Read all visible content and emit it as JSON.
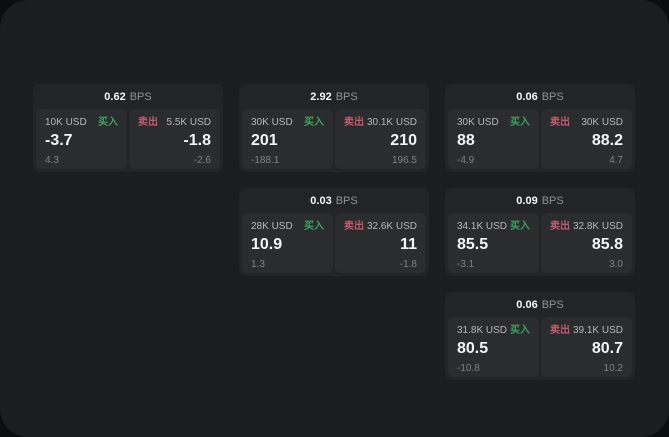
{
  "labels": {
    "bps_unit": "BPS",
    "buy": "买入",
    "sell": "卖出"
  },
  "colors": {
    "page_background": "#0c0d0e",
    "window_background": "#1c1d1e",
    "card_background": "#232426",
    "panel_background": "#2b2c2e",
    "buy_green": "#3ba55d",
    "sell_red": "#c25a6e",
    "primary_text": "#f3f4f5",
    "muted_text": "#8d9194"
  },
  "cards": [
    {
      "spread": "0.62",
      "buy": {
        "notional": "10K USD",
        "price": "-3.7",
        "delta": "4.3"
      },
      "sell": {
        "notional": "5.5K USD",
        "price": "-1.8",
        "delta": "-2.6"
      }
    },
    {
      "spread": "2.92",
      "buy": {
        "notional": "30K USD",
        "price": "201",
        "delta": "-188.1"
      },
      "sell": {
        "notional": "30.1K USD",
        "price": "210",
        "delta": "196.5"
      }
    },
    {
      "spread": "0.06",
      "buy": {
        "notional": "30K USD",
        "price": "88",
        "delta": "-4.9"
      },
      "sell": {
        "notional": "30K USD",
        "price": "88.2",
        "delta": "4.7"
      }
    },
    {
      "spread": "0.03",
      "buy": {
        "notional": "28K USD",
        "price": "10.9",
        "delta": "1.3"
      },
      "sell": {
        "notional": "32.6K USD",
        "price": "11",
        "delta": "-1.8"
      }
    },
    {
      "spread": "0.09",
      "buy": {
        "notional": "34.1K USD",
        "price": "85.5",
        "delta": "-3.1"
      },
      "sell": {
        "notional": "32.8K USD",
        "price": "85.8",
        "delta": "3.0"
      }
    },
    {
      "spread": "0.06",
      "buy": {
        "notional": "31.8K USD",
        "price": "80.5",
        "delta": "-10.8"
      },
      "sell": {
        "notional": "39.1K USD",
        "price": "80.7",
        "delta": "10.2"
      }
    }
  ]
}
